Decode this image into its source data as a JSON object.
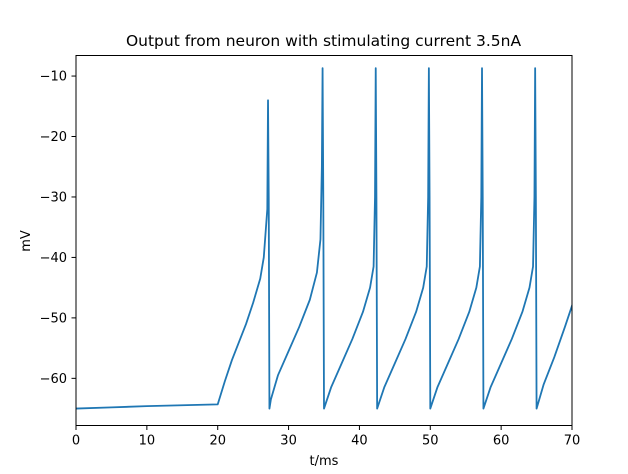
{
  "chart_data": {
    "type": "line",
    "title": "Output from neuron with stimulating current 3.5nA",
    "xlabel": "t/ms",
    "ylabel": "mV",
    "xlim": [
      0,
      70
    ],
    "ylim": [
      -67.8,
      -6.6
    ],
    "xticks": [
      0,
      10,
      20,
      30,
      40,
      50,
      60,
      70
    ],
    "yticks": [
      -60,
      -50,
      -40,
      -30,
      -20,
      -10
    ],
    "xtick_labels": [
      "0",
      "10",
      "20",
      "30",
      "40",
      "50",
      "60",
      "70"
    ],
    "ytick_labels": [
      "−60",
      "−50",
      "−40",
      "−30",
      "−20",
      "−10"
    ],
    "grid": false,
    "legend": "none",
    "series": [
      {
        "color": "#1f77b4",
        "x": [
          0,
          5,
          10,
          15,
          20,
          21,
          22,
          23,
          24,
          25,
          26,
          26.5,
          27.0,
          27.1,
          27.2,
          27.3,
          27.5,
          28.5,
          30,
          31.5,
          33,
          34,
          34.5,
          34.7,
          34.8,
          34.9,
          35.0,
          36.0,
          37.5,
          39.0,
          40.5,
          41.5,
          42.0,
          42.2,
          42.3,
          42.4,
          42.5,
          43.5,
          45,
          46.5,
          48,
          49,
          49.5,
          49.7,
          49.8,
          49.9,
          50.0,
          51.0,
          52.5,
          54.0,
          55.5,
          56.5,
          57.0,
          57.2,
          57.3,
          57.4,
          57.5,
          58.5,
          60.0,
          61.5,
          63.0,
          64.0,
          64.5,
          64.7,
          64.8,
          64.9,
          65.0,
          66.0,
          67.5,
          69.0,
          70.0
        ],
        "y": [
          -65.0,
          -64.8,
          -64.6,
          -64.45,
          -64.3,
          -60.5,
          -57.0,
          -54.0,
          -51.0,
          -47.5,
          -43.5,
          -40.0,
          -32.0,
          -14.0,
          -30.0,
          -65.0,
          -63.5,
          -59.5,
          -55.5,
          -51.5,
          -47.0,
          -42.5,
          -37.0,
          -25.0,
          -8.7,
          -30.0,
          -65.0,
          -61.5,
          -57.5,
          -53.5,
          -49.0,
          -45.0,
          -41.5,
          -30.0,
          -8.7,
          -30.0,
          -65.0,
          -61.5,
          -57.5,
          -53.5,
          -49.0,
          -45.0,
          -41.5,
          -30.0,
          -8.7,
          -30.0,
          -65.0,
          -61.5,
          -57.5,
          -53.5,
          -49.0,
          -45.0,
          -41.5,
          -30.0,
          -8.7,
          -30.0,
          -65.0,
          -61.5,
          -57.5,
          -53.5,
          -49.0,
          -45.0,
          -41.5,
          -30.0,
          -8.7,
          -30.0,
          -65.0,
          -61.0,
          -56.5,
          -51.5,
          -48.0
        ]
      }
    ]
  }
}
